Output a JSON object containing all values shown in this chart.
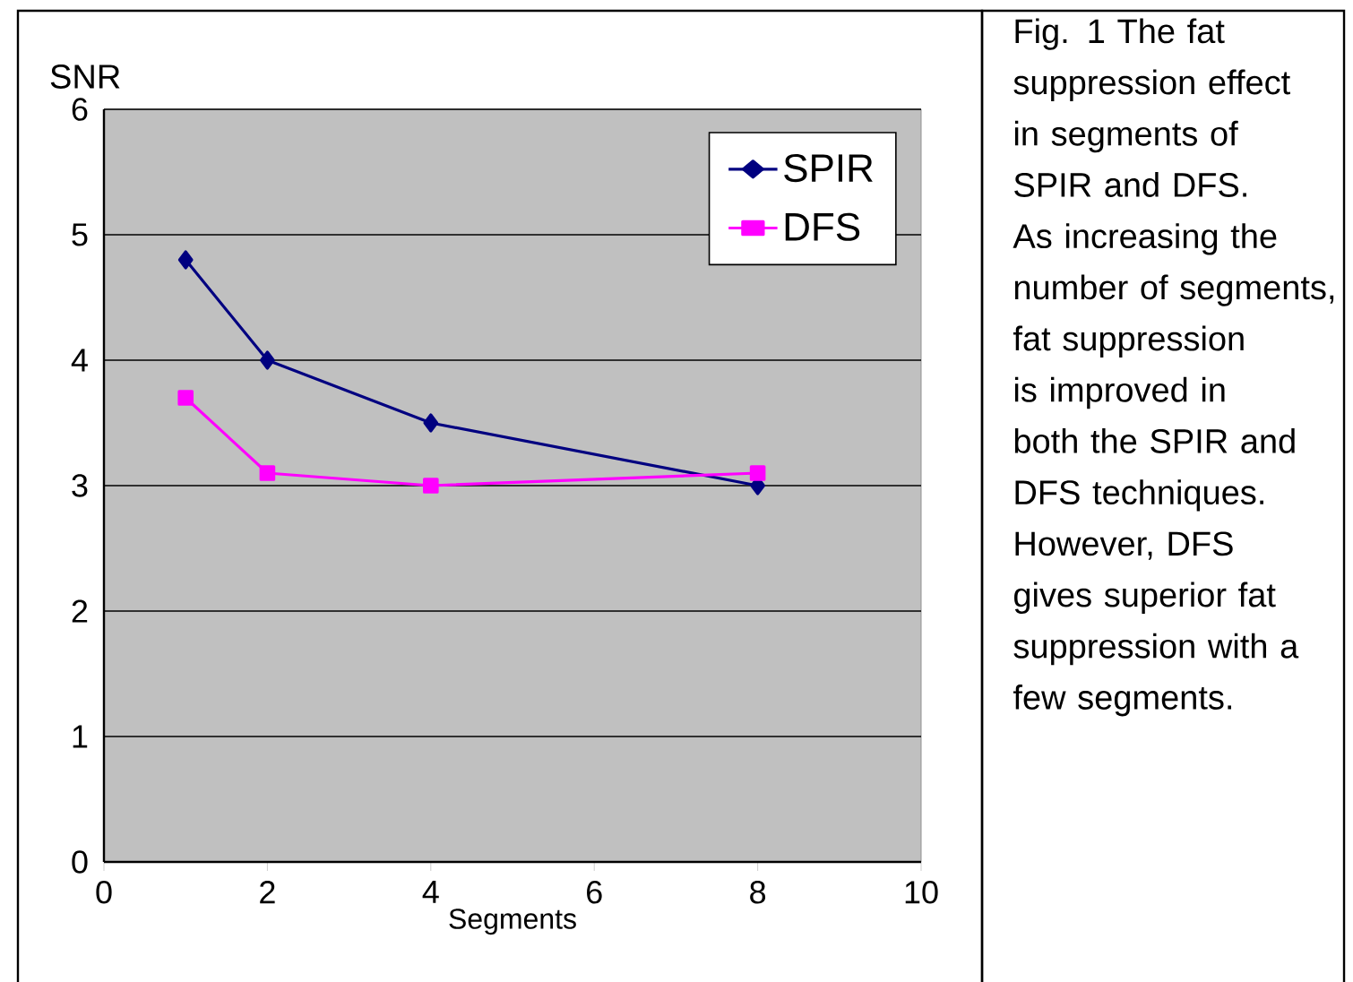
{
  "chart_data": {
    "type": "line",
    "xlabel": "Segments",
    "ylabel": "SNR",
    "x": [
      1,
      2,
      4,
      8
    ],
    "series": [
      {
        "name": "SPIR",
        "color": "#000080",
        "marker": "diamond",
        "values": [
          4.8,
          4.0,
          3.5,
          3.0
        ]
      },
      {
        "name": "DFS",
        "color": "#ff00ff",
        "marker": "square",
        "values": [
          3.7,
          3.1,
          3.0,
          3.1
        ]
      }
    ],
    "xlim": [
      0,
      10
    ],
    "ylim": [
      0,
      6
    ],
    "xticks": [
      0,
      2,
      4,
      6,
      8,
      10
    ],
    "yticks": [
      0,
      1,
      2,
      3,
      4,
      5,
      6
    ],
    "grid": "y",
    "legend": "top right",
    "annotations": [
      "Fig. 1 The fat suppression effect in segments of SPIR and DFS. As increasing the number of segments, fat suppression is improved in both the SPIR and DFS techniques. However, DFS gives superior fat suppression with a few segments."
    ]
  }
}
